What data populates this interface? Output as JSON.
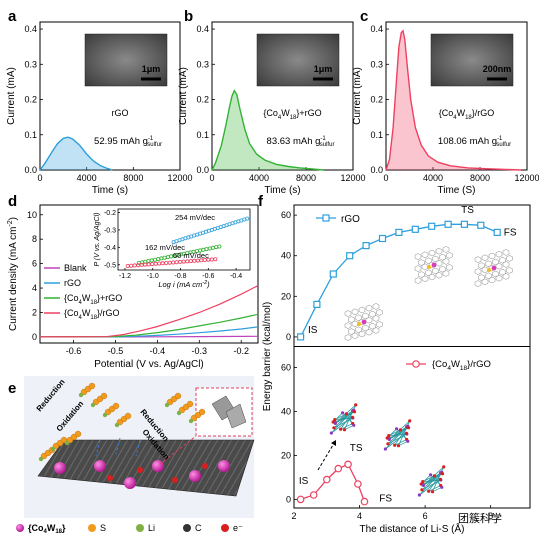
{
  "panel_letters": [
    "a",
    "b",
    "c",
    "d",
    "e",
    "f"
  ],
  "watermark": "团簇科学",
  "chart_data": [
    {
      "type": "area",
      "panel": "a",
      "xlabel": "Time (s)",
      "ylabel": "Current (mA)",
      "xlim": [
        0,
        12000
      ],
      "ylim": [
        0,
        0.42
      ],
      "x_ticks": [
        0,
        4000,
        8000,
        12000
      ],
      "y_ticks": [
        0.0,
        0.1,
        0.2,
        0.3,
        0.4
      ],
      "x_tick_labels": [
        "0",
        "4000",
        "8000",
        "12000"
      ],
      "y_tick_labels": [
        "0.0",
        "0.1",
        "0.2",
        "0.3",
        "0.4"
      ],
      "color": "#2f9fdc",
      "material": "rGO",
      "capacity": "52.95 mAh g",
      "capacity_unit_sup": "-1",
      "capacity_unit_sub": "sulfur",
      "inset_scale_bar": "1μm",
      "series": [
        {
          "x": [
            0,
            400,
            1000,
            1500,
            2000,
            2400,
            2800,
            3400,
            4000,
            4600,
            5200,
            5800,
            6200
          ],
          "y": [
            0,
            0.018,
            0.05,
            0.075,
            0.09,
            0.093,
            0.088,
            0.07,
            0.045,
            0.025,
            0.012,
            0.004,
            0
          ]
        }
      ]
    },
    {
      "type": "area",
      "panel": "b",
      "xlabel": "Time (s)",
      "ylabel": "Current (mA)",
      "xlim": [
        0,
        12000
      ],
      "ylim": [
        0,
        0.42
      ],
      "x_ticks": [
        0,
        4000,
        8000,
        12000
      ],
      "y_ticks": [
        0.0,
        0.1,
        0.2,
        0.3,
        0.4
      ],
      "x_tick_labels": [
        "0",
        "4000",
        "8000",
        "12000"
      ],
      "y_tick_labels": [
        "0.0",
        "0.1",
        "0.2",
        "0.3",
        "0.4"
      ],
      "color": "#33b233",
      "material_prefix": "{Co",
      "material_sub1": "4",
      "material_mid": "W",
      "material_sub2": "18",
      "material_suffix": "}+rGO",
      "capacity": "83.63 mAh g",
      "capacity_unit_sup": "-1",
      "capacity_unit_sub": "sulfur",
      "inset_scale_bar": "1μm",
      "series": [
        {
          "x": [
            0,
            300,
            800,
            1200,
            1500,
            1700,
            1900,
            2100,
            2400,
            2800,
            3200,
            3800,
            4500,
            5500,
            6500,
            7500,
            8500,
            9500
          ],
          "y": [
            0,
            0.02,
            0.07,
            0.13,
            0.18,
            0.21,
            0.225,
            0.215,
            0.17,
            0.115,
            0.075,
            0.045,
            0.028,
            0.016,
            0.01,
            0.006,
            0.003,
            0
          ]
        }
      ]
    },
    {
      "type": "area",
      "panel": "c",
      "xlabel": "Time (S)",
      "ylabel": "Current (mA)",
      "xlim": [
        0,
        12000
      ],
      "ylim": [
        0,
        0.42
      ],
      "x_ticks": [
        0,
        4000,
        8000,
        12000
      ],
      "y_ticks": [
        0.0,
        0.1,
        0.2,
        0.3,
        0.4
      ],
      "x_tick_labels": [
        "0",
        "4000",
        "8000",
        "12000"
      ],
      "y_tick_labels": [
        "0.0",
        "0.1",
        "0.2",
        "0.3",
        "0.4"
      ],
      "color": "#ee4060",
      "material_prefix": "{Co",
      "material_sub1": "4",
      "material_mid": "W",
      "material_sub2": "18",
      "material_suffix": "}/rGO",
      "capacity": "108.06 mAh g",
      "capacity_unit_sup": "-1",
      "capacity_unit_sub": "sulfur",
      "inset_scale_bar": "200nm",
      "series": [
        {
          "x": [
            0,
            300,
            600,
            900,
            1100,
            1300,
            1450,
            1600,
            1800,
            2100,
            2500,
            3000,
            3600,
            4400,
            5500,
            7000,
            9000,
            11500
          ],
          "y": [
            0,
            0.03,
            0.12,
            0.26,
            0.35,
            0.39,
            0.395,
            0.37,
            0.3,
            0.2,
            0.12,
            0.07,
            0.04,
            0.022,
            0.012,
            0.006,
            0.003,
            0
          ]
        }
      ]
    },
    {
      "type": "line",
      "panel": "d",
      "xlabel": "Potential (V vs. Ag/AgCl)",
      "ylabel": "Current density (mA cm",
      "ylabel_sup": "-2",
      "ylabel_end": ")",
      "xlim": [
        -0.68,
        -0.16
      ],
      "ylim": [
        -0.5,
        10.8
      ],
      "x_ticks": [
        -0.6,
        -0.5,
        -0.4,
        -0.3,
        -0.2
      ],
      "y_ticks": [
        0,
        2,
        4,
        6,
        8,
        10
      ],
      "x_tick_labels": [
        "-0.6",
        "-0.5",
        "-0.4",
        "-0.3",
        "-0.2"
      ],
      "y_tick_labels": [
        "0",
        "2",
        "4",
        "6",
        "8",
        "10"
      ],
      "legend": [
        "Blank",
        "rGO",
        "{Co4W18}+rGO",
        "{Co4W18}/rGO"
      ],
      "legend_rich": [
        {
          "a": "Blank"
        },
        {
          "a": "rGO"
        },
        {
          "a": "{Co",
          "s1": "4",
          "m": "W",
          "s2": "18",
          "e": "}+rGO"
        },
        {
          "a": "{Co",
          "s1": "4",
          "m": "W",
          "s2": "18",
          "e": "}/rGO"
        }
      ],
      "legend_colors": [
        "#bb44bb",
        "#2f9fdc",
        "#33b233",
        "#ee4060"
      ],
      "series": [
        {
          "name": "Blank",
          "x": [
            -0.68,
            -0.5,
            -0.4,
            -0.3,
            -0.2,
            -0.16
          ],
          "y": [
            0,
            0,
            0.01,
            0.02,
            0.04,
            0.05
          ]
        },
        {
          "name": "rGO",
          "x": [
            -0.68,
            -0.5,
            -0.45,
            -0.4,
            -0.35,
            -0.3,
            -0.25,
            -0.2,
            -0.16
          ],
          "y": [
            0,
            0,
            0.05,
            0.12,
            0.22,
            0.34,
            0.48,
            0.65,
            0.82
          ]
        },
        {
          "name": "{Co4W18}+rGO",
          "x": [
            -0.68,
            -0.5,
            -0.45,
            -0.4,
            -0.35,
            -0.3,
            -0.25,
            -0.2,
            -0.16
          ],
          "y": [
            0,
            0.02,
            0.15,
            0.35,
            0.6,
            0.9,
            1.2,
            1.55,
            1.85
          ]
        },
        {
          "name": "{Co4W18}/rGO",
          "x": [
            -0.68,
            -0.52,
            -0.48,
            -0.44,
            -0.4,
            -0.35,
            -0.3,
            -0.25,
            -0.2,
            -0.16
          ],
          "y": [
            0,
            0.02,
            0.2,
            0.5,
            0.85,
            1.4,
            2.0,
            2.7,
            3.5,
            4.2
          ]
        }
      ],
      "inset": {
        "type": "scatter",
        "xlabel": "Log i (mA cm",
        "xlabel_sup": "-2",
        "xlabel_end": ")",
        "ylabel": "P (V vs. Ag/AgCl)",
        "xlim": [
          -1.25,
          -0.3
        ],
        "ylim": [
          -0.53,
          -0.18
        ],
        "x_ticks": [
          -1.2,
          -1.0,
          -0.8,
          -0.6,
          -0.4
        ],
        "y_ticks": [
          -0.5,
          -0.4,
          -0.3,
          -0.2
        ],
        "x_tick_labels": [
          "-1.2",
          "-1.0",
          "-0.8",
          "-0.6",
          "-0.4"
        ],
        "y_tick_labels": [
          "-0.5",
          "-0.4",
          "-0.3",
          "-0.2"
        ],
        "annotations": [
          "254 mV/dec",
          "162 mV/dec",
          "60 mV/dec"
        ],
        "series": [
          {
            "color": "#2f9fdc",
            "x_start": -0.85,
            "x_end": -0.32,
            "y_start": -0.37,
            "y_end": -0.235
          },
          {
            "color": "#33b233",
            "x_start": -1.1,
            "x_end": -0.52,
            "y_start": -0.49,
            "y_end": -0.395
          },
          {
            "color": "#ee4060",
            "x_start": -1.18,
            "x_end": -0.55,
            "y_start": -0.507,
            "y_end": -0.468
          }
        ]
      }
    },
    {
      "type": "line",
      "panel": "f",
      "xlabel": "The distance of Li-S (Å)",
      "ylabel": "Energy barrier (kcal/mol)",
      "top": {
        "ylim": [
          -3,
          64
        ],
        "y_ticks": [
          0,
          20,
          40,
          60
        ],
        "y_tick_labels": [
          "0",
          "20",
          "40",
          "60"
        ],
        "legend": "rGO",
        "color": "#2f9fdc",
        "labels": [
          "IS",
          "TS",
          "FS"
        ],
        "x": [
          2.2,
          2.7,
          3.2,
          3.7,
          4.2,
          4.7,
          5.2,
          5.7,
          6.2,
          6.7,
          7.2,
          7.7,
          8.2
        ],
        "y": [
          0,
          16,
          31,
          40,
          45,
          48.5,
          51.5,
          53,
          54.5,
          55.5,
          55.5,
          55,
          51.5
        ]
      },
      "bottom": {
        "ylim": [
          -3,
          68
        ],
        "y_ticks": [
          0,
          20,
          40,
          60
        ],
        "y_tick_labels": [
          "0",
          "20",
          "40",
          "60"
        ],
        "legend_rich": {
          "a": "{Co",
          "s1": "4",
          "m": "W",
          "s2": "18",
          "e": "}/rGO"
        },
        "legend": "{Co4W18}/rGO",
        "color": "#ee4060",
        "labels": [
          "IS",
          "TS",
          "FS"
        ],
        "x": [
          2.2,
          2.6,
          3.0,
          3.35,
          3.65,
          3.95,
          4.15
        ],
        "y": [
          0,
          2,
          9,
          14,
          16,
          7,
          -1
        ]
      },
      "xlim": [
        2,
        9.2
      ],
      "x_ticks": [
        2,
        4,
        6,
        8
      ],
      "x_tick_labels": [
        "2",
        "4",
        "6",
        "8"
      ]
    }
  ]
}
